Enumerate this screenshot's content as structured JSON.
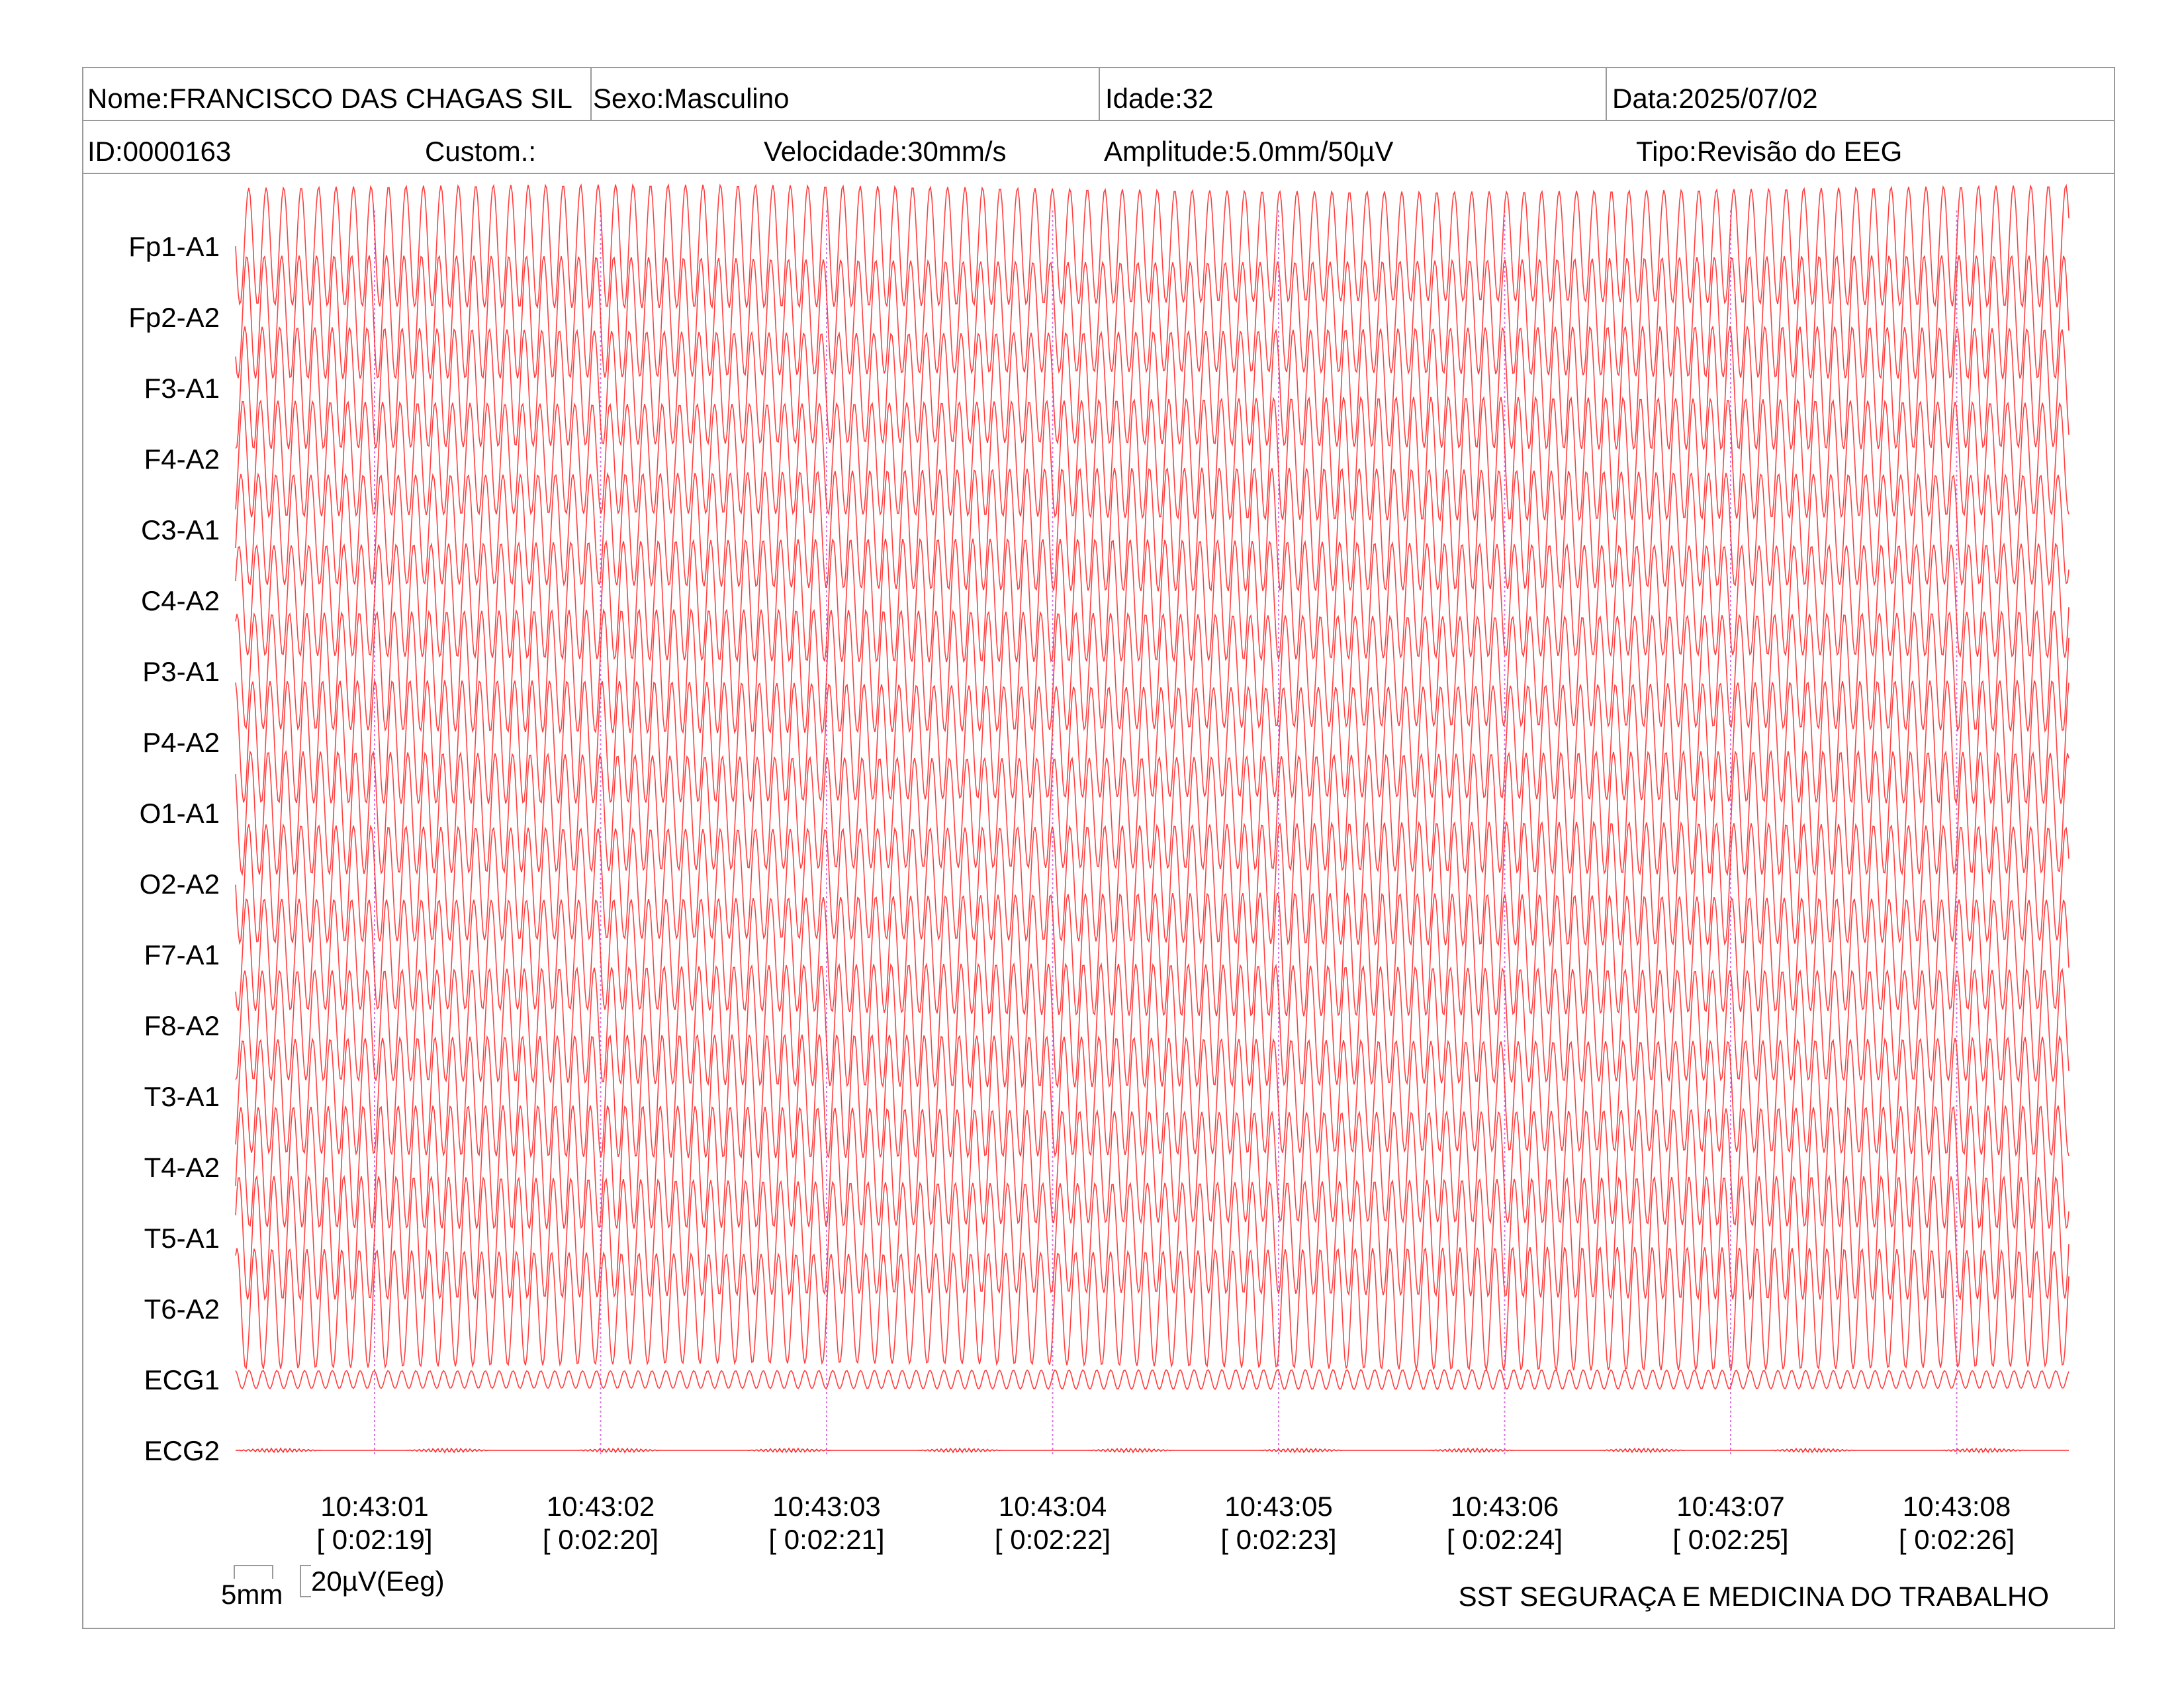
{
  "header": {
    "nome": "Nome:FRANCISCO DAS CHAGAS SIL",
    "sexo": "Sexo:Masculino",
    "idade": "Idade:32",
    "data": "Data:2025/07/02",
    "id": "ID:0000163",
    "custom": "Custom.:",
    "velocidade": "Velocidade:30mm/s",
    "amplitude": "Amplitude:5.0mm/50µV",
    "tipo": "Tipo:Revisão do EEG"
  },
  "scale_bar": {
    "time": "5mm",
    "amplitude": "20µV(Eeg)"
  },
  "footer": {
    "organization": "SST SEGURAÇA E MEDICINA DO TRABALHO"
  },
  "colors": {
    "trace": "#ff2a2a",
    "time_marker": "#d970e0",
    "border": "#9a9a9a"
  },
  "chart_data": {
    "type": "line",
    "title": "",
    "xlabel": "",
    "ylabel": "",
    "grid": false,
    "channels": [
      "Fp1-A1",
      "Fp2-A2",
      "F3-A1",
      "F4-A2",
      "C3-A1",
      "C4-A2",
      "P3-A1",
      "P4-A2",
      "O1-A1",
      "O2-A2",
      "F7-A1",
      "F8-A2",
      "T3-A1",
      "T4-A2",
      "T5-A1",
      "T6-A2",
      "ECG1",
      "ECG2"
    ],
    "time_markers": [
      {
        "clock": "10:43:01",
        "elapsed": "[ 0:02:19]"
      },
      {
        "clock": "10:43:02",
        "elapsed": "[ 0:02:20]"
      },
      {
        "clock": "10:43:03",
        "elapsed": "[ 0:02:21]"
      },
      {
        "clock": "10:43:04",
        "elapsed": "[ 0:02:22]"
      },
      {
        "clock": "10:43:05",
        "elapsed": "[ 0:02:23]"
      },
      {
        "clock": "10:43:06",
        "elapsed": "[ 0:02:24]"
      },
      {
        "clock": "10:43:07",
        "elapsed": "[ 0:02:25]"
      },
      {
        "clock": "10:43:08",
        "elapsed": "[ 0:02:26]"
      }
    ],
    "sweep_speed": "30mm/s",
    "sensitivity": "5.0mm/50µV"
  }
}
